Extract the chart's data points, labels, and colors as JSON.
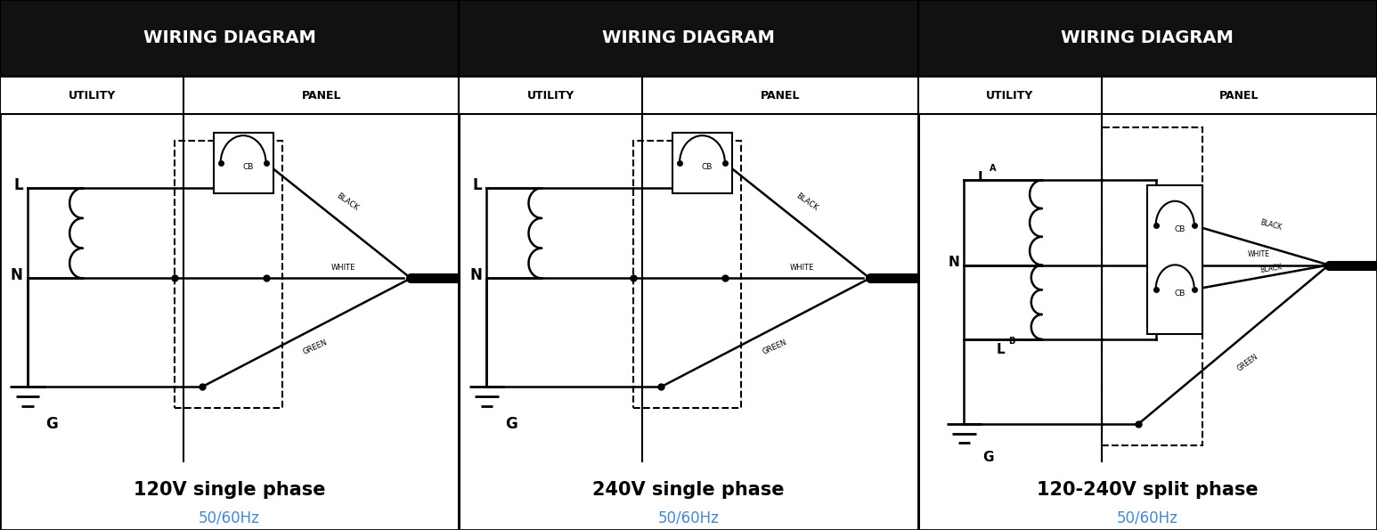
{
  "bg_color": "#ffffff",
  "header_bg": "#111111",
  "header_text_color": "#ffffff",
  "header_text": "WIRING DIAGRAM",
  "subheader_utility": "UTILITY",
  "subheader_panel": "PANEL",
  "hz_text": "50/60Hz",
  "hz_color": "#4488cc",
  "diagrams": [
    {
      "title": "120V single phase",
      "num_transformers": 1
    },
    {
      "title": "240V single phase",
      "num_transformers": 1
    },
    {
      "title": "120-240V split phase",
      "num_transformers": 2
    }
  ]
}
